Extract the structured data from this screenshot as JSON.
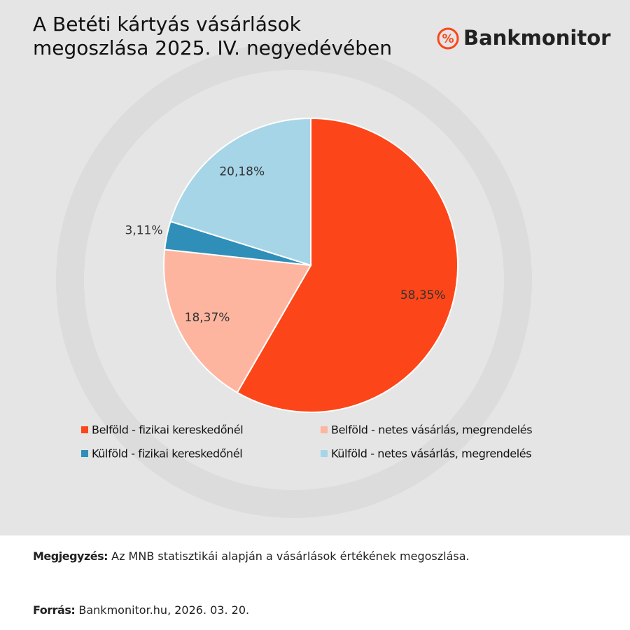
{
  "chart_data": {
    "type": "pie",
    "title": "A Betéti kártyás vásárlások megoszlása 2025. IV. negyedévében",
    "categories": [
      "Belföld - fizikai kereskedőnél",
      "Belföld - netes vásárlás, megrendelés",
      "Külföld - fizikai kereskedőnél",
      "Külföld - netes vásárlás, megrendelés"
    ],
    "values": [
      58.35,
      18.37,
      3.11,
      20.18
    ],
    "value_labels": [
      "58,35%",
      "18,37%",
      "3,11%",
      "20,18%"
    ],
    "colors": [
      "#fc4619",
      "#fdb5a0",
      "#2f8fb9",
      "#a6d5e8"
    ]
  },
  "logo": {
    "icon": "%",
    "name": "Bankmonitor"
  },
  "note": {
    "label": "Megjegyzés:",
    "text": "Az MNB statisztikái alapján a vásárlások értékének megoszlása."
  },
  "source": {
    "label": "Forrás:",
    "text": "Bankmonitor.hu, 2026. 03. 20."
  }
}
